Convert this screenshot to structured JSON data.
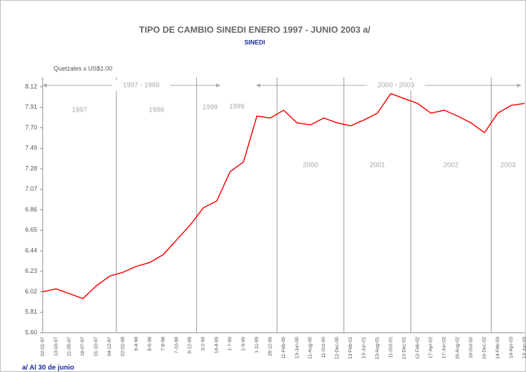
{
  "chart_data": {
    "type": "line",
    "title": "TIPO DE CAMBIO SINEDI ENERO 1997 - JUNIO 2003 a/",
    "subtitle": "SINEDI",
    "y_label": "Quetzales x US$1.00",
    "footnote": "a/  Al 30 de junio",
    "periods": [
      "1997 - 1998",
      "1999",
      "2000 - 2003"
    ],
    "years": [
      "1997",
      "1998",
      "1999",
      "2000",
      "2001",
      "2002",
      "2003"
    ],
    "categories": [
      "02-01-97",
      "13-03-97",
      "21-05-97",
      "18-07-97",
      "01-10-97",
      "04-12-97",
      "02-02-98",
      "6-4-98",
      "8-6-98",
      "7-8-98",
      "7-10-98",
      "8-12-98",
      "3-2-99",
      "14-4-99",
      "1-7-99",
      "1-9-99",
      "1-11-99",
      "28-12-99",
      "11-Feb-00",
      "13-Jun-00",
      "11-Aug-00",
      "11-Oct-00",
      "12-Dec-00",
      "13-Feb-01",
      "13-Jun-01",
      "13-Aug-01",
      "11-Oct-01",
      "12-Dec-01",
      "12-Feb-02",
      "17-Apr-02",
      "17-Jun-02",
      "16-Aug-02",
      "16-Oct-02",
      "16-Dec-02",
      "14-Feb-03",
      "14-Apr-03",
      "13-Jun-03"
    ],
    "series": [
      {
        "name": "SINEDI",
        "color": "#ff0000",
        "values": [
          6.02,
          6.05,
          6.0,
          5.95,
          6.08,
          6.18,
          6.22,
          6.28,
          6.32,
          6.4,
          6.55,
          6.7,
          6.88,
          6.95,
          7.25,
          7.35,
          7.82,
          7.8,
          7.88,
          7.75,
          7.73,
          7.8,
          7.75,
          7.72,
          7.78,
          7.85,
          8.05,
          8.0,
          7.95,
          7.85,
          7.88,
          7.82,
          7.75,
          7.65,
          7.85,
          7.93,
          7.95
        ]
      }
    ],
    "ylim": [
      5.6,
      8.12
    ],
    "yticks": [
      {
        "value": 5.6,
        "label": "5.60"
      },
      5.81,
      6.02,
      6.23,
      6.44,
      6.65,
      6.86,
      7.07,
      7.28,
      7.49,
      {
        "value": 7.7,
        "label": "7.70"
      },
      7.91,
      8.12
    ],
    "grid": false
  }
}
